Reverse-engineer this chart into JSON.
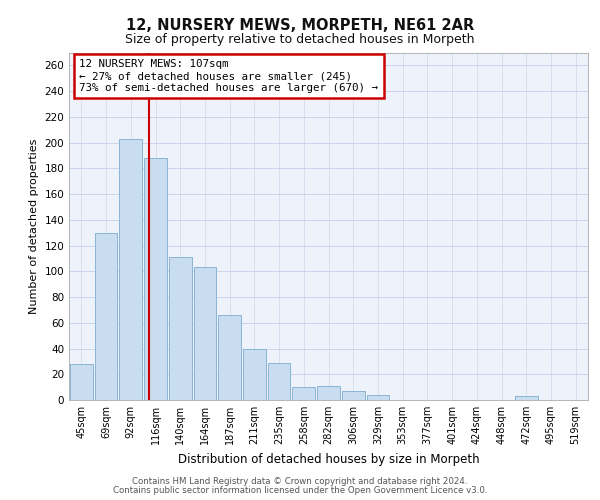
{
  "title1": "12, NURSERY MEWS, MORPETH, NE61 2AR",
  "title2": "Size of property relative to detached houses in Morpeth",
  "xlabel": "Distribution of detached houses by size in Morpeth",
  "ylabel": "Number of detached properties",
  "bar_labels": [
    "45sqm",
    "69sqm",
    "92sqm",
    "116sqm",
    "140sqm",
    "164sqm",
    "187sqm",
    "211sqm",
    "235sqm",
    "258sqm",
    "282sqm",
    "306sqm",
    "329sqm",
    "353sqm",
    "377sqm",
    "401sqm",
    "424sqm",
    "448sqm",
    "472sqm",
    "495sqm",
    "519sqm"
  ],
  "bar_values": [
    28,
    130,
    203,
    188,
    111,
    103,
    66,
    40,
    29,
    10,
    11,
    7,
    4,
    0,
    0,
    0,
    0,
    0,
    3,
    0,
    0
  ],
  "bar_color": "#c8ddf0",
  "bar_edge_color": "#8ab4d4",
  "property_line_color": "#cc0000",
  "annotation_line1": "12 NURSERY MEWS: 107sqm",
  "annotation_line2": "← 27% of detached houses are smaller (245)",
  "annotation_line3": "73% of semi-detached houses are larger (670) →",
  "annotation_box_color": "#ffffff",
  "annotation_box_edge": "#cc0000",
  "ylim": [
    0,
    270
  ],
  "yticks": [
    0,
    20,
    40,
    60,
    80,
    100,
    120,
    140,
    160,
    180,
    200,
    220,
    240,
    260
  ],
  "footer1": "Contains HM Land Registry data © Crown copyright and database right 2024.",
  "footer2": "Contains public sector information licensed under the Open Government Licence v3.0.",
  "plot_bg": "#eef2fb",
  "grid_color": "#c5cfe8"
}
